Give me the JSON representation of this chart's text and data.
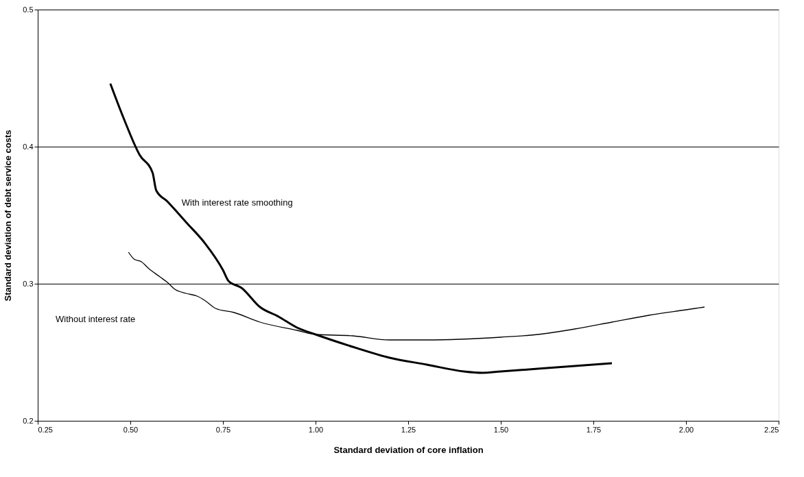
{
  "chart_data": {
    "type": "line",
    "xlabel": "Standard deviation of core inflation",
    "ylabel": "Standard deviation of debt service costs",
    "xlim": [
      0.25,
      2.25
    ],
    "xticks": [
      {
        "value": 0.25,
        "label": "0.25"
      },
      {
        "value": 0.5,
        "label": "0.50"
      },
      {
        "value": 0.75,
        "label": "0.75"
      },
      {
        "value": 1.0,
        "label": "1.00"
      },
      {
        "value": 1.25,
        "label": "1.25"
      },
      {
        "value": 1.5,
        "label": "1.50"
      },
      {
        "value": 1.75,
        "label": "1.75"
      },
      {
        "value": 2.0,
        "label": "2.00"
      },
      {
        "value": 2.25,
        "label": "2.25"
      }
    ],
    "ylim": [
      0.2,
      0.5
    ],
    "yticks": [
      0.2,
      0.3,
      0.4,
      0.5
    ],
    "grid": "y",
    "marker": "none",
    "line_style": "solid",
    "series": [
      {
        "name": "With interest rate smoothing",
        "color": "#000000",
        "x": [
          0.446,
          0.483,
          0.525,
          0.56,
          0.57,
          0.6,
          0.65,
          0.7,
          0.75,
          0.765,
          0.8,
          0.85,
          0.9,
          0.95,
          1.0,
          1.1,
          1.2,
          1.3,
          1.4,
          1.45,
          1.5,
          1.6,
          1.7,
          1.8
        ],
        "values": [
          0.446,
          0.42,
          0.394,
          0.381,
          0.368,
          0.36,
          0.345,
          0.33,
          0.31,
          0.302,
          0.297,
          0.283,
          0.276,
          0.268,
          0.263,
          0.254,
          0.246,
          0.241,
          0.236,
          0.235,
          0.236,
          0.238,
          0.24,
          0.242
        ]
      },
      {
        "color": "#000000",
        "x": [
          0.495,
          0.51,
          0.53,
          0.55,
          0.58,
          0.6,
          0.62,
          0.65,
          0.68,
          0.7,
          0.73,
          0.78,
          0.85,
          0.95,
          1.0,
          1.1,
          1.2,
          1.3,
          1.5,
          1.6,
          1.7,
          1.8,
          1.9,
          2.0,
          2.05
        ],
        "values": [
          0.323,
          0.318,
          0.316,
          0.311,
          0.305,
          0.301,
          0.296,
          0.293,
          0.291,
          0.288,
          0.282,
          0.279,
          0.272,
          0.266,
          0.263,
          0.262,
          0.259,
          0.259,
          0.261,
          0.263,
          0.267,
          0.272,
          0.277,
          0.281,
          0.283
        ]
      }
    ],
    "annotations": [
      "Without interest rate"
    ]
  }
}
